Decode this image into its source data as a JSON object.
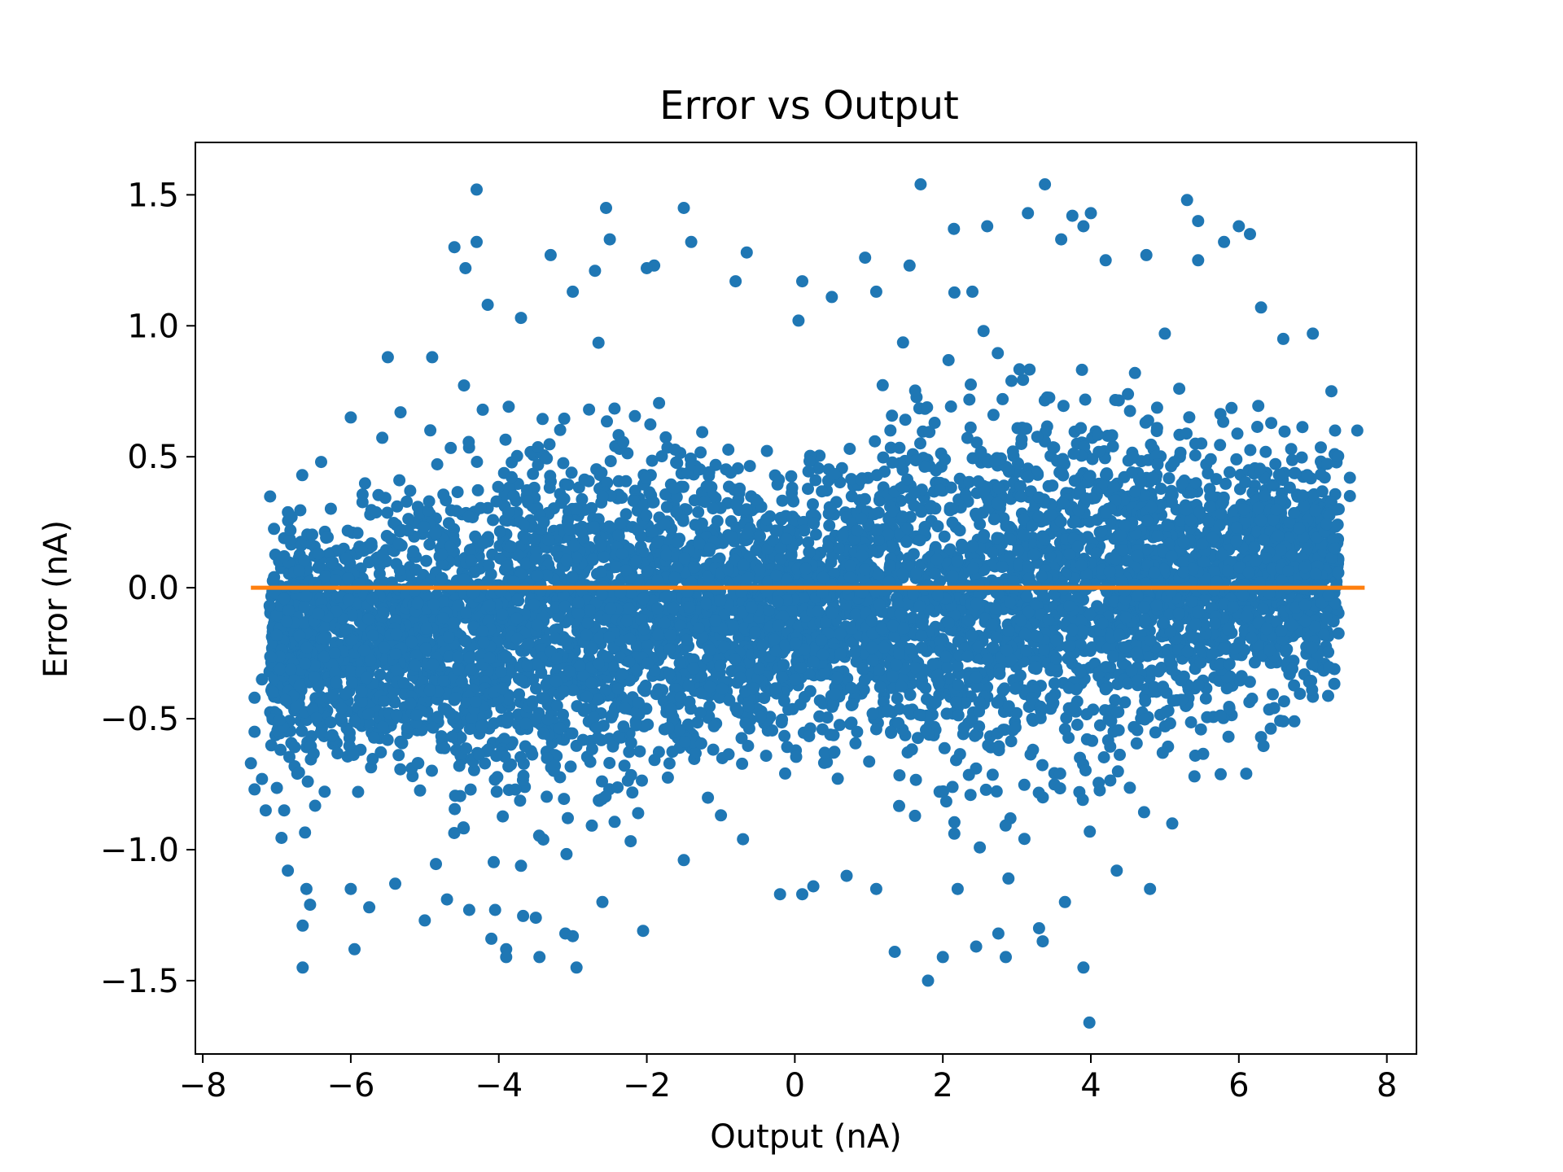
{
  "chart_data": {
    "type": "scatter",
    "title": "Error vs Output",
    "xlabel": "Output (nA)",
    "ylabel": "Error (nA)",
    "xlim": [
      -8.1,
      8.4
    ],
    "ylim": [
      -1.78,
      1.7
    ],
    "grid": false,
    "legend": "none",
    "x_ticks": [
      {
        "value": -8,
        "label": "−8"
      },
      {
        "value": -6,
        "label": "−6"
      },
      {
        "value": -4,
        "label": "−4"
      },
      {
        "value": -2,
        "label": "−2"
      },
      {
        "value": 0,
        "label": "0"
      },
      {
        "value": 2,
        "label": "2"
      },
      {
        "value": 4,
        "label": "4"
      },
      {
        "value": 6,
        "label": "6"
      },
      {
        "value": 8,
        "label": "8"
      }
    ],
    "y_ticks": [
      {
        "value": 1.5,
        "label": "1.5"
      },
      {
        "value": 1.0,
        "label": "1.0"
      },
      {
        "value": 0.5,
        "label": "0.5"
      },
      {
        "value": 0.0,
        "label": "0.0"
      },
      {
        "value": -0.5,
        "label": "−0.5"
      },
      {
        "value": -1.0,
        "label": "−1.0"
      },
      {
        "value": -1.5,
        "label": "−1.5"
      }
    ],
    "series": [
      {
        "type": "scatter",
        "color": "#1f77b4",
        "x_range": [
          -7.35,
          7.7
        ],
        "points": [
          [
            -4.3,
            1.52
          ],
          [
            1.7,
            1.54
          ],
          [
            3.38,
            1.54
          ],
          [
            5.3,
            1.48
          ],
          [
            -1.5,
            1.45
          ],
          [
            -2.55,
            1.45
          ],
          [
            4.0,
            1.43
          ],
          [
            3.15,
            1.43
          ],
          [
            5.45,
            1.4
          ],
          [
            3.75,
            1.42
          ],
          [
            6.0,
            1.38
          ],
          [
            2.6,
            1.38
          ],
          [
            2.15,
            1.37
          ],
          [
            6.15,
            1.35
          ],
          [
            -4.3,
            1.32
          ],
          [
            -2.5,
            1.33
          ],
          [
            -1.4,
            1.32
          ],
          [
            3.6,
            1.33
          ],
          [
            3.9,
            1.38
          ],
          [
            -3.3,
            1.27
          ],
          [
            -0.65,
            1.28
          ],
          [
            0.95,
            1.26
          ],
          [
            4.75,
            1.27
          ],
          [
            5.8,
            1.32
          ],
          [
            -2.7,
            1.21
          ],
          [
            -0.8,
            1.17
          ],
          [
            0.1,
            1.17
          ],
          [
            -1.9,
            1.23
          ],
          [
            -2.0,
            1.22
          ],
          [
            4.2,
            1.25
          ],
          [
            1.55,
            1.23
          ],
          [
            -4.45,
            1.22
          ],
          [
            -4.6,
            1.3
          ],
          [
            2.4,
            1.13
          ],
          [
            5.45,
            1.25
          ],
          [
            1.1,
            1.13
          ],
          [
            0.5,
            1.11
          ],
          [
            -3.0,
            1.13
          ],
          [
            -4.15,
            1.08
          ],
          [
            6.3,
            1.07
          ],
          [
            0.05,
            1.02
          ],
          [
            -3.7,
            1.03
          ],
          [
            2.55,
            0.98
          ],
          [
            7.0,
            0.97
          ],
          [
            6.6,
            0.95
          ],
          [
            7.25,
            0.75
          ],
          [
            7.6,
            0.6
          ],
          [
            -4.9,
            0.88
          ],
          [
            -5.5,
            0.88
          ],
          [
            -6.0,
            0.65
          ],
          [
            -6.4,
            0.48
          ],
          [
            -6.8,
            0.27
          ],
          [
            -6.9,
            0.12
          ],
          [
            -7.0,
            -0.18
          ],
          [
            -7.2,
            -0.35
          ],
          [
            -7.3,
            -0.42
          ],
          [
            -7.3,
            -0.55
          ],
          [
            -7.35,
            -0.67
          ],
          [
            -7.2,
            -0.73
          ],
          [
            -7.3,
            -0.77
          ],
          [
            -7.15,
            -0.85
          ],
          [
            -6.9,
            -0.85
          ],
          [
            -6.85,
            -1.08
          ],
          [
            -6.6,
            -1.15
          ],
          [
            -6.55,
            -1.21
          ],
          [
            -6.65,
            -1.29
          ],
          [
            -6.65,
            -1.45
          ],
          [
            -6.0,
            -1.15
          ],
          [
            -5.95,
            -1.38
          ],
          [
            -5.75,
            -1.22
          ],
          [
            -5.4,
            -1.13
          ],
          [
            -5.0,
            -1.27
          ],
          [
            -4.7,
            -1.19
          ],
          [
            -4.4,
            -1.23
          ],
          [
            -4.05,
            -1.23
          ],
          [
            -3.9,
            -1.38
          ],
          [
            -3.9,
            -1.41
          ],
          [
            -4.1,
            -1.34
          ],
          [
            -3.5,
            -1.26
          ],
          [
            -3.45,
            -1.41
          ],
          [
            -3.1,
            -1.32
          ],
          [
            -3.0,
            -1.33
          ],
          [
            -2.95,
            -1.45
          ],
          [
            -2.6,
            -1.2
          ],
          [
            -2.05,
            -1.31
          ],
          [
            -1.5,
            -1.04
          ],
          [
            -0.7,
            -0.96
          ],
          [
            -0.2,
            -1.17
          ],
          [
            0.1,
            -1.17
          ],
          [
            0.25,
            -1.14
          ],
          [
            0.7,
            -1.1
          ],
          [
            1.1,
            -1.15
          ],
          [
            1.35,
            -1.39
          ],
          [
            1.8,
            -1.5
          ],
          [
            2.0,
            -1.41
          ],
          [
            2.2,
            -1.15
          ],
          [
            2.45,
            -1.37
          ],
          [
            2.75,
            -1.32
          ],
          [
            2.85,
            -1.41
          ],
          [
            3.3,
            -1.3
          ],
          [
            3.35,
            -1.35
          ],
          [
            3.65,
            -1.2
          ],
          [
            3.9,
            -1.45
          ],
          [
            3.98,
            -1.66
          ],
          [
            4.35,
            -1.08
          ],
          [
            4.8,
            -1.15
          ],
          [
            5.1,
            -0.9
          ],
          [
            5.4,
            -0.72
          ],
          [
            6.1,
            -0.71
          ],
          [
            6.3,
            -0.57
          ],
          [
            6.6,
            -0.51
          ],
          [
            6.75,
            -0.51
          ],
          [
            6.95,
            -0.36
          ],
          [
            7.15,
            -0.18
          ],
          [
            7.3,
            0.15
          ],
          [
            7.35,
            0.3
          ],
          [
            7.5,
            0.35
          ],
          [
            7.5,
            0.42
          ],
          [
            7.3,
            0.6
          ],
          [
            5.0,
            0.97
          ]
        ]
      },
      {
        "type": "line",
        "color": "#ff7f0e",
        "x": [
          -7.35,
          7.7
        ],
        "y": [
          0.0,
          0.0
        ]
      }
    ]
  }
}
